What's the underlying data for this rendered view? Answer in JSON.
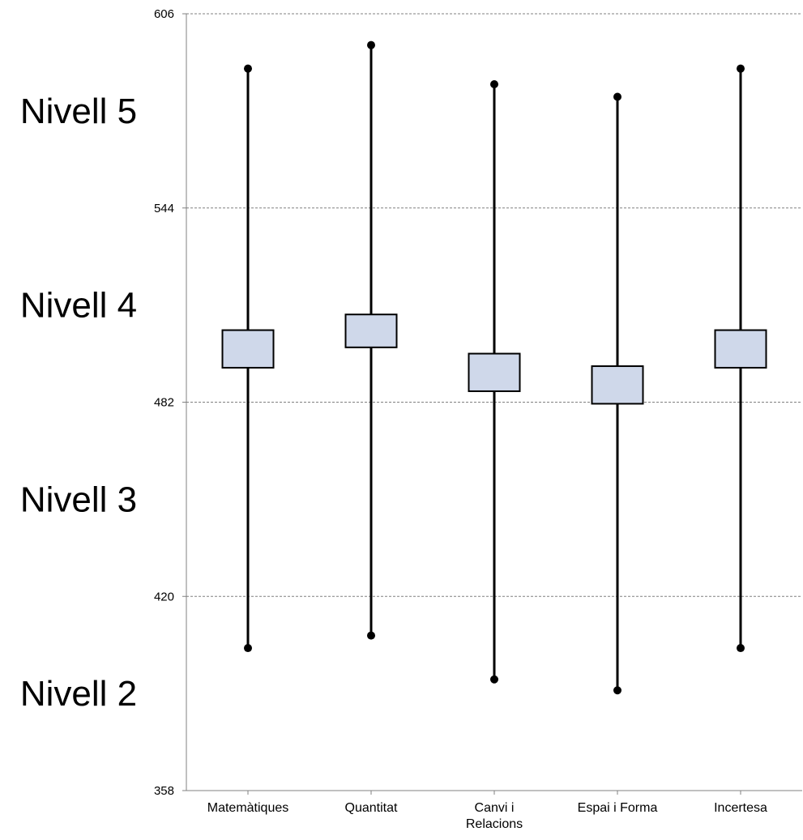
{
  "chart_data": {
    "type": "box-range",
    "y_ticks": [
      "606",
      "544",
      "482",
      "420",
      "358"
    ],
    "ylim": [
      358,
      606
    ],
    "grid": true,
    "level_labels": [
      {
        "text": "Nivell 5",
        "y": 575
      },
      {
        "text": "Nivell 4",
        "y": 513
      },
      {
        "text": "Nivell 3",
        "y": 451
      },
      {
        "text": "Nivell 2",
        "y": 389
      }
    ],
    "categories": [
      {
        "label": [
          "Matemàtiques"
        ],
        "high": 588.5,
        "low": 403.5,
        "box_top": 505.0,
        "box_bottom": 493.0
      },
      {
        "label": [
          "Quantitat"
        ],
        "high": 596.0,
        "low": 407.5,
        "box_top": 510.0,
        "box_bottom": 499.5
      },
      {
        "label": [
          "Canvi i",
          "Relacions"
        ],
        "high": 583.5,
        "low": 393.5,
        "box_top": 497.5,
        "box_bottom": 485.5
      },
      {
        "label": [
          "Espai i Forma"
        ],
        "high": 579.5,
        "low": 390.0,
        "box_top": 493.5,
        "box_bottom": 481.5
      },
      {
        "label": [
          "Incertesa"
        ],
        "high": 588.5,
        "low": 403.5,
        "box_top": 505.0,
        "box_bottom": 493.0
      }
    ],
    "colors": {
      "box_fill": "#cfd8ea",
      "stroke": "#000000",
      "grid": "#808080"
    }
  }
}
